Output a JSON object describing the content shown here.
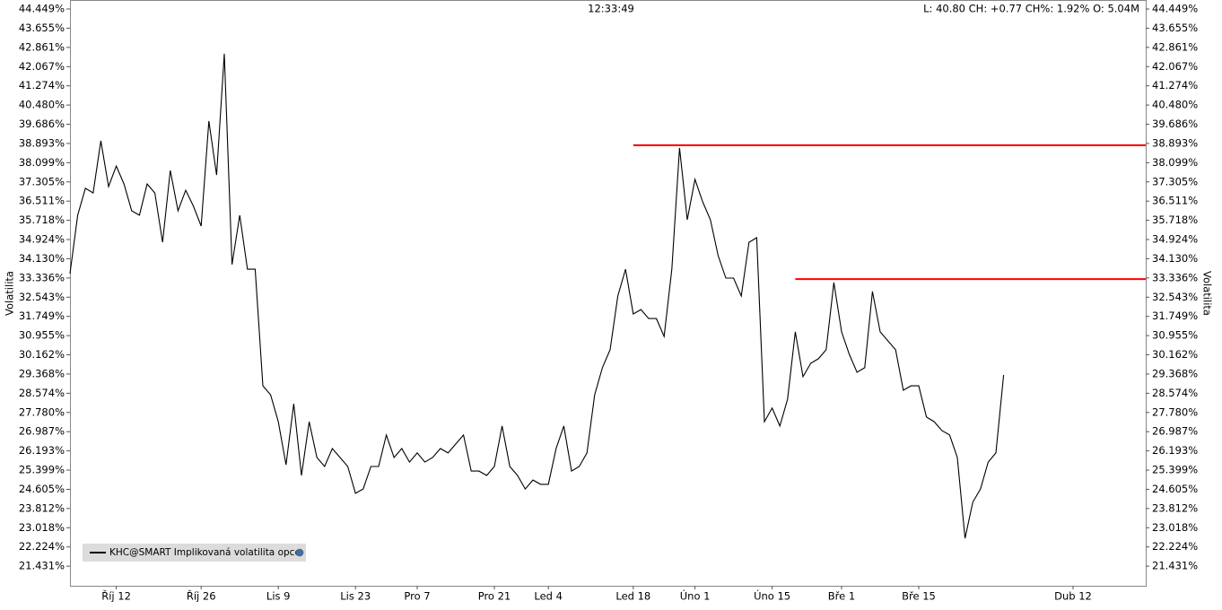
{
  "chart_data": {
    "type": "line",
    "time": "12:33:49",
    "info": "L: 40.80 CH: +0.77 CH%: 1.92% O: 5.04M",
    "y_label": "Volatilita",
    "categories": [
      null,
      null,
      null,
      null,
      null,
      null,
      "Říj 12",
      null,
      null,
      null,
      null,
      null,
      null,
      null,
      null,
      null,
      null,
      "Říj 26",
      null,
      null,
      null,
      null,
      null,
      null,
      null,
      null,
      null,
      "Lis 9",
      null,
      null,
      null,
      null,
      null,
      null,
      null,
      null,
      null,
      "Lis 23",
      null,
      null,
      null,
      null,
      null,
      null,
      null,
      "Pro 7",
      null,
      null,
      null,
      null,
      null,
      null,
      null,
      null,
      null,
      "Pro 21",
      null,
      null,
      null,
      null,
      null,
      null,
      "Led 4",
      null,
      null,
      null,
      null,
      null,
      null,
      null,
      null,
      null,
      null,
      "Led 18",
      null,
      null,
      null,
      null,
      null,
      null,
      null,
      "Úno 1",
      null,
      null,
      null,
      null,
      null,
      null,
      null,
      null,
      null,
      "Úno 15",
      null,
      null,
      null,
      null,
      null,
      null,
      null,
      null,
      "Bře 1",
      null,
      null,
      null,
      null,
      null,
      null,
      null,
      null,
      null,
      "Bře 15",
      null,
      null,
      null,
      null,
      null,
      null,
      null,
      null,
      null,
      null,
      null,
      null,
      null,
      null,
      null,
      null,
      null,
      null,
      null,
      "Dub 12",
      null,
      null,
      null,
      null,
      null,
      null,
      null,
      null,
      null
    ],
    "series": [
      {
        "name": "KHC@SMART Implikovaná volatilita opce",
        "color": "#000000",
        "values": [
          33.52,
          35.93,
          37.04,
          36.85,
          39.0,
          37.11,
          37.96,
          37.22,
          36.11,
          35.93,
          37.22,
          36.85,
          34.81,
          37.78,
          36.11,
          36.96,
          36.3,
          35.48,
          39.82,
          37.59,
          42.6,
          33.89,
          35.93,
          33.7,
          33.7,
          28.88,
          28.51,
          27.4,
          25.62,
          28.14,
          25.18,
          27.4,
          25.92,
          25.55,
          26.29,
          25.92,
          25.55,
          24.44,
          24.62,
          25.55,
          25.55,
          26.85,
          25.92,
          26.29,
          25.73,
          26.11,
          25.73,
          25.92,
          26.29,
          26.11,
          26.48,
          26.85,
          25.36,
          25.36,
          25.18,
          25.55,
          27.22,
          25.55,
          25.18,
          24.62,
          24.99,
          24.81,
          24.81,
          26.29,
          27.22,
          25.36,
          25.55,
          26.11,
          28.51,
          29.63,
          30.37,
          32.59,
          33.7,
          31.85,
          32.03,
          31.66,
          31.66,
          30.92,
          33.7,
          38.71,
          35.74,
          37.41,
          36.48,
          35.74,
          34.26,
          33.33,
          33.33,
          32.59,
          34.81,
          35.0,
          27.4,
          27.96,
          27.22,
          28.33,
          31.11,
          29.26,
          29.81,
          30.0,
          30.37,
          33.15,
          31.11,
          30.18,
          29.44,
          29.63,
          32.78,
          31.11,
          30.74,
          30.37,
          28.7,
          28.88,
          28.88,
          27.59,
          27.4,
          27.03,
          26.85,
          25.92,
          22.58,
          24.07,
          24.62,
          25.73,
          26.11,
          29.33,
          null,
          null,
          null,
          null,
          null,
          null,
          null,
          null,
          null,
          null,
          null,
          null,
          null,
          null,
          null,
          null,
          null,
          null
        ]
      }
    ],
    "hlines": [
      {
        "value": 38.82,
        "from": 73,
        "color": "#ff0000"
      },
      {
        "value": 33.29,
        "from": 94,
        "color": "#ff0000"
      }
    ],
    "ylim": [
      20.62,
      44.82
    ],
    "yticks": [
      {
        "value": 44.449,
        "label": "44.449%"
      },
      {
        "value": 43.655,
        "label": "43.655%"
      },
      {
        "value": 42.861,
        "label": "42.861%"
      },
      {
        "value": 42.067,
        "label": "42.067%"
      },
      {
        "value": 41.274,
        "label": "41.274%"
      },
      {
        "value": 40.48,
        "label": "40.480%"
      },
      {
        "value": 39.686,
        "label": "39.686%"
      },
      {
        "value": 38.893,
        "label": "38.893%"
      },
      {
        "value": 38.099,
        "label": "38.099%"
      },
      {
        "value": 37.305,
        "label": "37.305%"
      },
      {
        "value": 36.511,
        "label": "36.511%"
      },
      {
        "value": 35.718,
        "label": "35.718%"
      },
      {
        "value": 34.924,
        "label": "34.924%"
      },
      {
        "value": 34.13,
        "label": "34.130%"
      },
      {
        "value": 33.336,
        "label": "33.336%"
      },
      {
        "value": 32.543,
        "label": "32.543%"
      },
      {
        "value": 31.749,
        "label": "31.749%"
      },
      {
        "value": 30.955,
        "label": "30.955%"
      },
      {
        "value": 30.162,
        "label": "30.162%"
      },
      {
        "value": 29.368,
        "label": "29.368%"
      },
      {
        "value": 28.574,
        "label": "28.574%"
      },
      {
        "value": 27.78,
        "label": "27.780%"
      },
      {
        "value": 26.987,
        "label": "26.987%"
      },
      {
        "value": 26.193,
        "label": "26.193%"
      },
      {
        "value": 25.399,
        "label": "25.399%"
      },
      {
        "value": 24.605,
        "label": "24.605%"
      },
      {
        "value": 23.812,
        "label": "23.812%"
      },
      {
        "value": 23.018,
        "label": "23.018%"
      },
      {
        "value": 22.224,
        "label": "22.224%"
      },
      {
        "value": 21.431,
        "label": "21.431%"
      }
    ]
  }
}
